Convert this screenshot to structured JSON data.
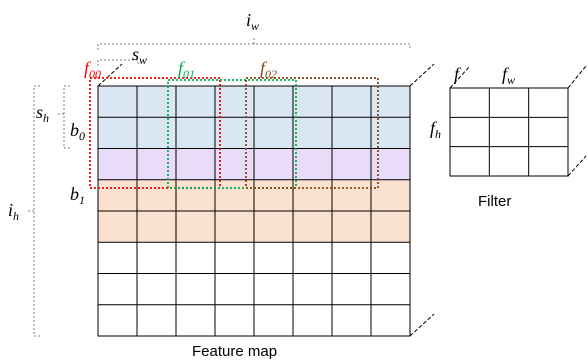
{
  "labels": {
    "iw": "i",
    "iw_sub": "w",
    "ih": "i",
    "ih_sub": "h",
    "sw": "s",
    "sw_sub": "w",
    "sh": "s",
    "sh_sub": "h",
    "b0": "b",
    "b0_sub": "0",
    "b1": "b",
    "b1_sub": "1",
    "f00": "f",
    "f00_sub": "00",
    "f01": "f",
    "f01_sub": "01",
    "f02": "f",
    "f02_sub": "02",
    "f_depth": "f",
    "fw": "f",
    "fw_sub": "w",
    "fh": "f",
    "fh_sub": "h",
    "feature_map_caption": "Feature map",
    "filter_caption": "Filter"
  },
  "colors": {
    "band_b0": "#dae6f2",
    "band_mid": "#e8dcf8",
    "band_b1": "#fae1d0",
    "f00": "#ff0000",
    "f01": "#00b050",
    "f02": "#8b4513",
    "grid": "#000000",
    "dim": "#7f7f7f"
  },
  "grid": {
    "rows": 8,
    "cols": 8
  },
  "filter": {
    "rows": 3,
    "cols": 3
  }
}
